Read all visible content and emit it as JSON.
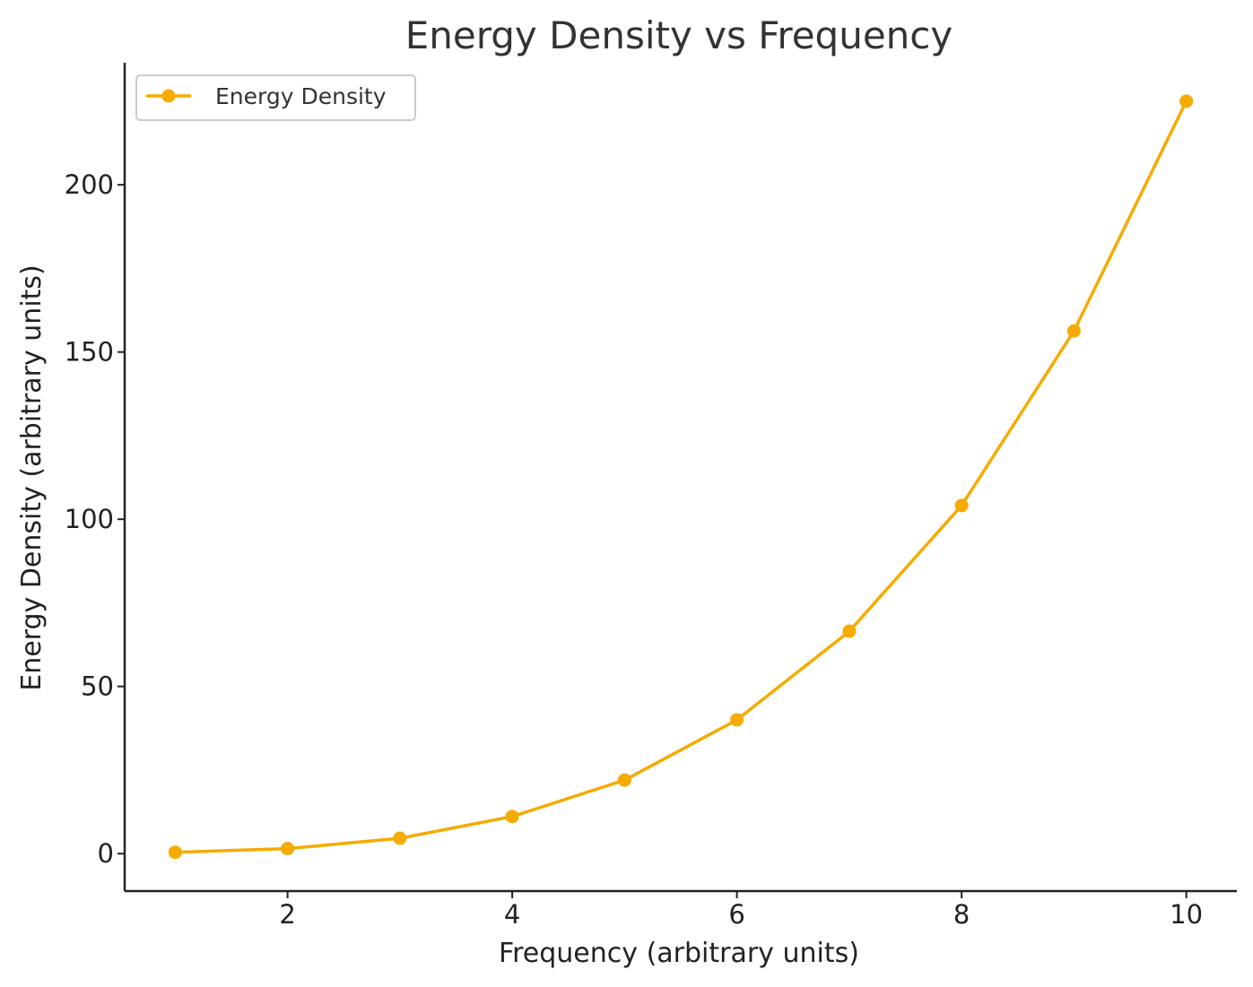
{
  "chart_data": {
    "type": "line",
    "title": "Energy Density vs Frequency",
    "xlabel": "Frequency (arbitrary units)",
    "ylabel": "Energy Density (arbitrary units)",
    "x": [
      1,
      2,
      3,
      4,
      5,
      6,
      7,
      8,
      9,
      10
    ],
    "series": [
      {
        "name": "Energy Density",
        "values": [
          0.4,
          1.5,
          4.6,
          11.1,
          22.0,
          40.0,
          66.5,
          104.1,
          156.3,
          225.0
        ],
        "color": "#f5ab00"
      }
    ],
    "xlim": [
      0.55,
      10.45
    ],
    "ylim": [
      -11.2,
      236.5
    ],
    "xticks": [
      2,
      4,
      6,
      8,
      10
    ],
    "yticks": [
      0,
      50,
      100,
      150,
      200
    ],
    "grid": false,
    "legend_position": "top-left",
    "marker": "circle"
  }
}
